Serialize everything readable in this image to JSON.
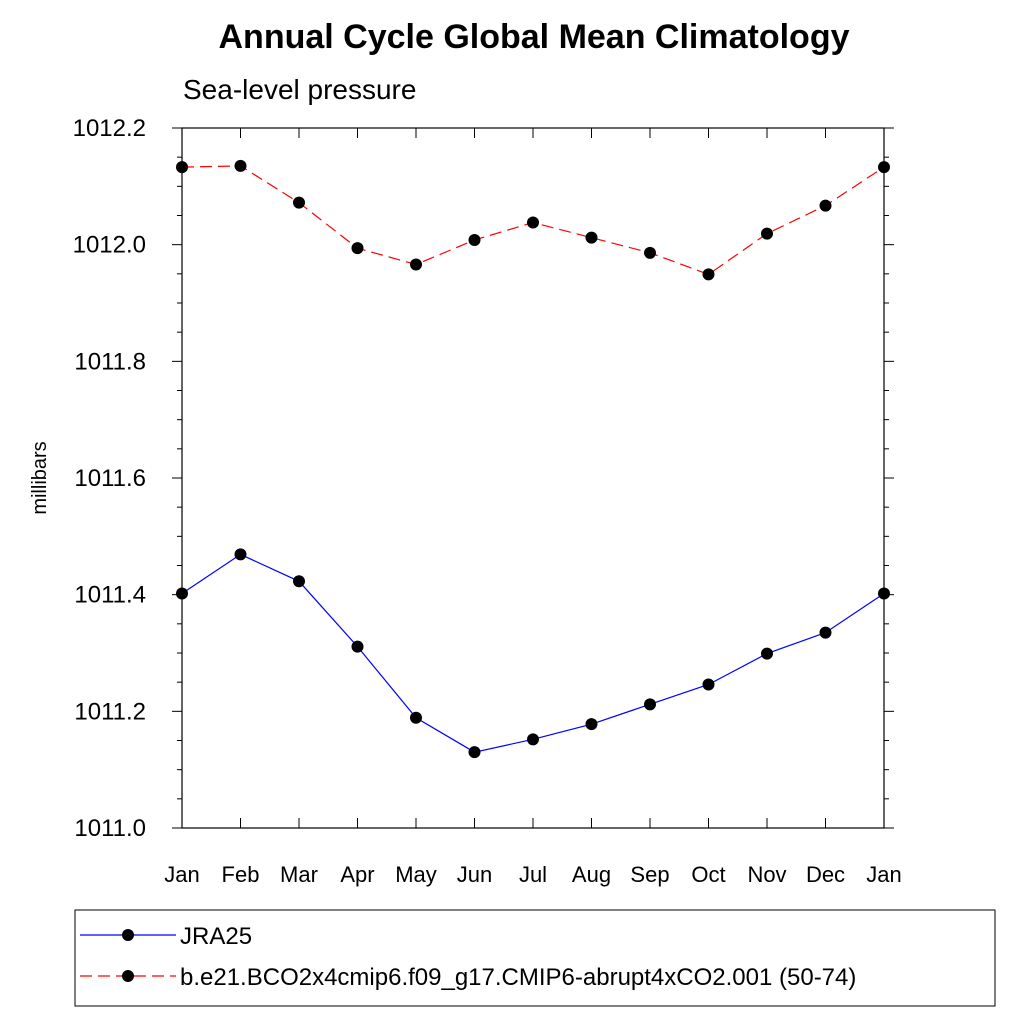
{
  "chart_data": {
    "type": "line",
    "title": "Annual Cycle Global Mean Climatology",
    "subtitle": "Sea-level pressure",
    "ylabel": "millibars",
    "xlabel": "",
    "ylim": [
      1011.0,
      1012.2
    ],
    "yticks": [
      "1011.0",
      "1011.2",
      "1011.4",
      "1011.6",
      "1011.8",
      "1012.0",
      "1012.2"
    ],
    "categories": [
      "Jan",
      "Feb",
      "Mar",
      "Apr",
      "May",
      "Jun",
      "Jul",
      "Aug",
      "Sep",
      "Oct",
      "Nov",
      "Dec",
      "Jan"
    ],
    "grid": false,
    "legend_position": "bottom",
    "series": [
      {
        "name": "JRA25",
        "color": "#0000ff",
        "dash": "solid",
        "values": [
          1011.402,
          1011.469,
          1011.423,
          1011.311,
          1011.189,
          1011.13,
          1011.152,
          1011.178,
          1011.212,
          1011.246,
          1011.299,
          1011.335,
          1011.402
        ]
      },
      {
        "name": "b.e21.BCO2x4cmip6.f09_g17.CMIP6-abrupt4xCO2.001 (50-74)",
        "color": "#ff0000",
        "dash": "dashed",
        "values": [
          1012.133,
          1012.135,
          1012.072,
          1011.994,
          1011.966,
          1012.008,
          1012.038,
          1012.012,
          1011.986,
          1011.949,
          1012.019,
          1012.067,
          1012.133
        ]
      }
    ]
  }
}
